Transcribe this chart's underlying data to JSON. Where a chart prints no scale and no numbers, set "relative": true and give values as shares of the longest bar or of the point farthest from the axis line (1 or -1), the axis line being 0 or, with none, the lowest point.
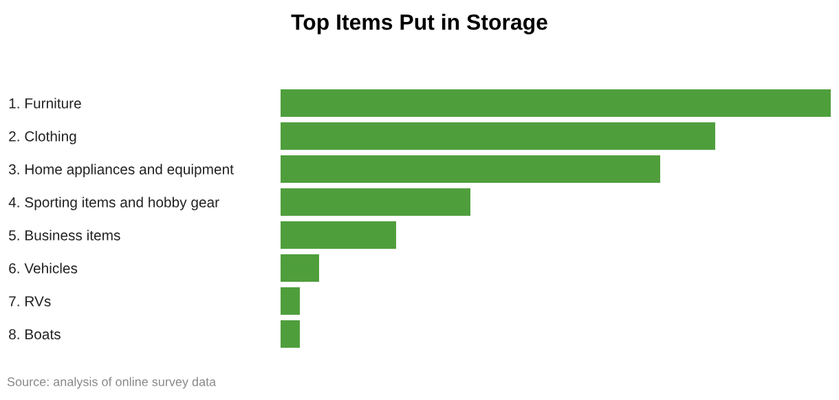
{
  "chart_data": {
    "type": "bar",
    "orientation": "horizontal",
    "relative": true,
    "title": "Top Items Put in Storage",
    "categories": [
      "1. Furniture",
      "2. Clothing",
      "3. Home appliances and equipment",
      "4. Sporting items and hobby gear",
      "5. Business items",
      "6. Vehicles",
      "7. RVs",
      "8. Boats"
    ],
    "values": [
      1,
      0.79,
      0.69,
      0.345,
      0.21,
      0.07,
      0.035,
      0.035
    ],
    "color": "#4f9e3c",
    "annotations": [
      "Source: analysis of online survey data"
    ],
    "grid": false,
    "legend": false
  }
}
